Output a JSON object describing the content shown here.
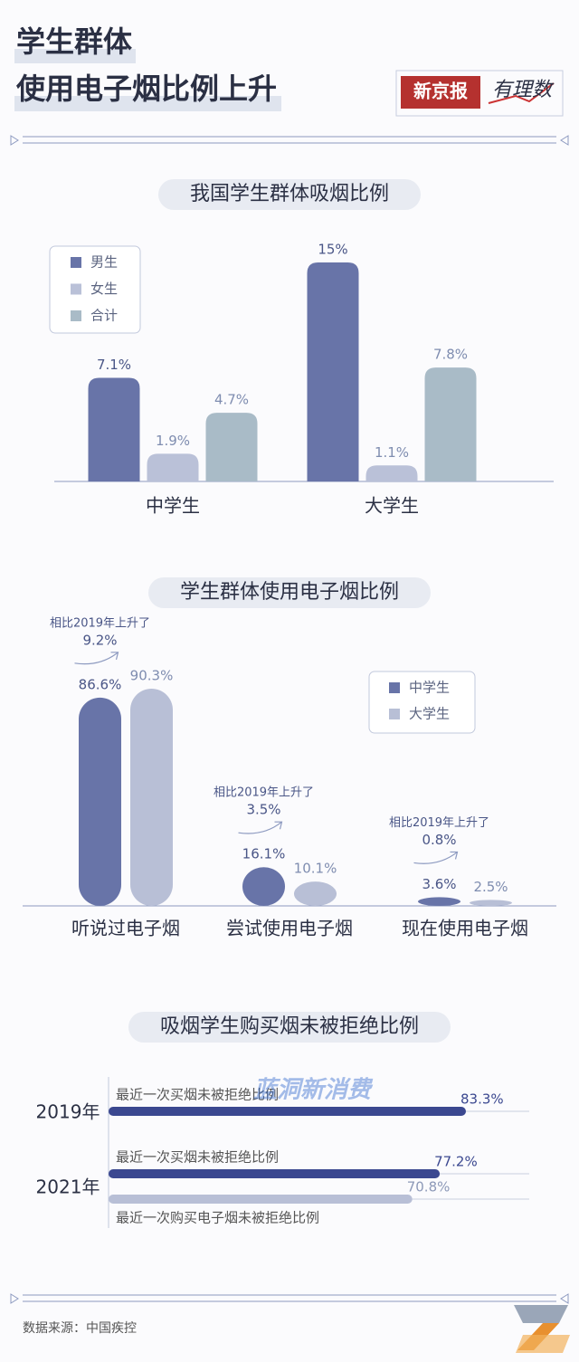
{
  "header": {
    "title_lines": [
      "学生群体",
      "使用电子烟比例上升"
    ],
    "brand": "新京报",
    "column": "有理数"
  },
  "chart_data": [
    {
      "type": "bar",
      "title": "我国学生群体吸烟比例",
      "categories": [
        "中学生",
        "大学生"
      ],
      "legend": "upper left",
      "series": [
        {
          "name": "男生",
          "color": "#6874a8",
          "values": [
            7.1,
            15
          ],
          "value_labels": [
            "7.1%",
            "15%"
          ]
        },
        {
          "name": "女生",
          "color": "#bac1d8",
          "values": [
            1.9,
            1.1
          ],
          "value_labels": [
            "1.9%",
            "1.1%"
          ]
        },
        {
          "name": "合计",
          "color": "#a9bbc7",
          "values": [
            4.7,
            7.8
          ],
          "value_labels": [
            "4.7%",
            "7.8%"
          ]
        }
      ]
    },
    {
      "type": "bar",
      "title": "学生群体使用电子烟比例",
      "categories": [
        "听说过电子烟",
        "尝试使用电子烟",
        "现在使用电子烟"
      ],
      "legend": "upper right",
      "series": [
        {
          "name": "中学生",
          "color": "#6874a8",
          "values": [
            86.6,
            16.1,
            3.6
          ],
          "value_labels": [
            "86.6%",
            "16.1%",
            "3.6%"
          ]
        },
        {
          "name": "大学生",
          "color": "#b8bfd6",
          "values": [
            90.3,
            10.1,
            2.5
          ],
          "value_labels": [
            "90.3%",
            "10.1%",
            "2.5%"
          ]
        }
      ],
      "annotations": [
        {
          "text": "相比2019年上升了",
          "value": 9.2,
          "label": "9.2%"
        },
        {
          "text": "相比2019年上升了",
          "value": 3.5,
          "label": "3.5%"
        },
        {
          "text": "相比2019年上升了",
          "value": 0.8,
          "label": "0.8%"
        }
      ]
    },
    {
      "type": "barh",
      "title": "吸烟学生购买烟未被拒绝比例",
      "categories": [
        "2019年",
        "2021年"
      ],
      "series": [
        {
          "name": "最近一次买烟未被拒绝比例",
          "color": "#3b4890",
          "values": [
            83.3,
            77.2
          ],
          "value_labels": [
            "83.3%",
            "77.2%"
          ]
        },
        {
          "name": "最近一次购买电子烟未被拒绝比例",
          "color": "#b8bfd6",
          "values": [
            null,
            70.8
          ],
          "value_labels": [
            null,
            "70.8%"
          ]
        }
      ]
    }
  ],
  "watermark": "蓝洞新消费",
  "source": "数据来源：中国疾控"
}
